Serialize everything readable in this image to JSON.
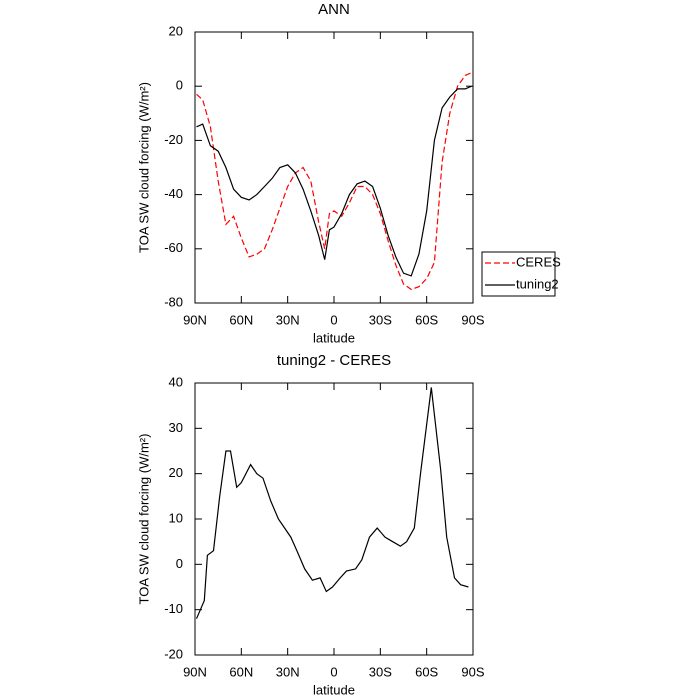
{
  "chart_data": [
    {
      "type": "line",
      "title": "ANN",
      "xlabel": "latitude",
      "ylabel": "TOA SW cloud forcing (W/m²)",
      "x": [
        89,
        85,
        80,
        75,
        70,
        65,
        60,
        55,
        50,
        45,
        40,
        35,
        30,
        25,
        20,
        15,
        10,
        6,
        3,
        0,
        -5,
        -10,
        -15,
        -20,
        -25,
        -30,
        -35,
        -40,
        -45,
        -50,
        -55,
        -60,
        -65,
        -70,
        -75,
        -80,
        -85,
        -89
      ],
      "xlim": [
        90,
        -90
      ],
      "xticks": [
        {
          "value": 90,
          "label": "90N"
        },
        {
          "value": 60,
          "label": "60N"
        },
        {
          "value": 30,
          "label": "30N"
        },
        0,
        {
          "value": -30,
          "label": "30S"
        },
        {
          "value": -60,
          "label": "60S"
        },
        {
          "value": -90,
          "label": "90S"
        }
      ],
      "ylim": [
        -80,
        20
      ],
      "yticks": [
        -80,
        -60,
        -40,
        -20,
        0,
        20
      ],
      "legend": "right",
      "series": [
        {
          "name": "CERES",
          "color": "#ff0000",
          "line_style": "dashed",
          "values": [
            -3,
            -5,
            -15,
            -35,
            -51,
            -48,
            -56,
            -63,
            -62,
            -60,
            -53,
            -45,
            -37,
            -32,
            -30,
            -35,
            -50,
            -60,
            -47,
            -46,
            -48,
            -43,
            -37,
            -37,
            -40,
            -47,
            -57,
            -66,
            -73,
            -75,
            -74,
            -71,
            -65,
            -28,
            -10,
            0,
            4,
            5
          ]
        },
        {
          "name": "tuning2",
          "color": "#000000",
          "line_style": "solid",
          "values": [
            -15,
            -14,
            -22,
            -24,
            -30,
            -38,
            -41,
            -42,
            -40,
            -37,
            -34,
            -30,
            -29,
            -32,
            -38,
            -46,
            -55,
            -64,
            -53,
            -52,
            -47,
            -40,
            -36,
            -35,
            -37,
            -45,
            -55,
            -63,
            -69,
            -70,
            -62,
            -46,
            -20,
            -8,
            -4,
            -1,
            -1,
            0
          ]
        }
      ]
    },
    {
      "type": "line",
      "title": "tuning2 - CERES",
      "xlabel": "latitude",
      "ylabel": "TOA SW cloud forcing (W/m²)",
      "x": [
        89,
        84,
        82,
        78,
        74,
        70,
        67,
        63,
        60,
        54,
        50,
        46,
        41,
        36,
        34,
        28,
        24,
        19,
        14,
        9,
        5,
        1,
        -4,
        -8,
        -14,
        -18,
        -23,
        -28,
        -33,
        -38,
        -43,
        -47,
        -52,
        -56,
        -63,
        -69,
        -73,
        -78,
        -82,
        -87
      ],
      "xlim": [
        90,
        -90
      ],
      "xticks": [
        {
          "value": 90,
          "label": "90N"
        },
        {
          "value": 60,
          "label": "60N"
        },
        {
          "value": 30,
          "label": "30N"
        },
        0,
        {
          "value": -30,
          "label": "30S"
        },
        {
          "value": -60,
          "label": "60S"
        },
        {
          "value": -90,
          "label": "90S"
        }
      ],
      "ylim": [
        -20,
        40
      ],
      "yticks": [
        -20,
        -10,
        0,
        10,
        20,
        30,
        40
      ],
      "series": [
        {
          "color": "#000000",
          "line_style": "solid",
          "values": [
            -12,
            -8,
            2,
            3,
            15,
            25,
            25,
            17,
            18,
            22,
            20,
            19,
            14,
            10,
            9,
            6,
            3,
            -1,
            -3.5,
            -3,
            -6,
            -5,
            -3,
            -1.5,
            -1,
            1,
            6,
            8,
            6,
            5,
            4,
            5,
            8,
            20,
            39,
            21,
            6,
            -3,
            -4.5,
            -5
          ]
        }
      ]
    }
  ]
}
